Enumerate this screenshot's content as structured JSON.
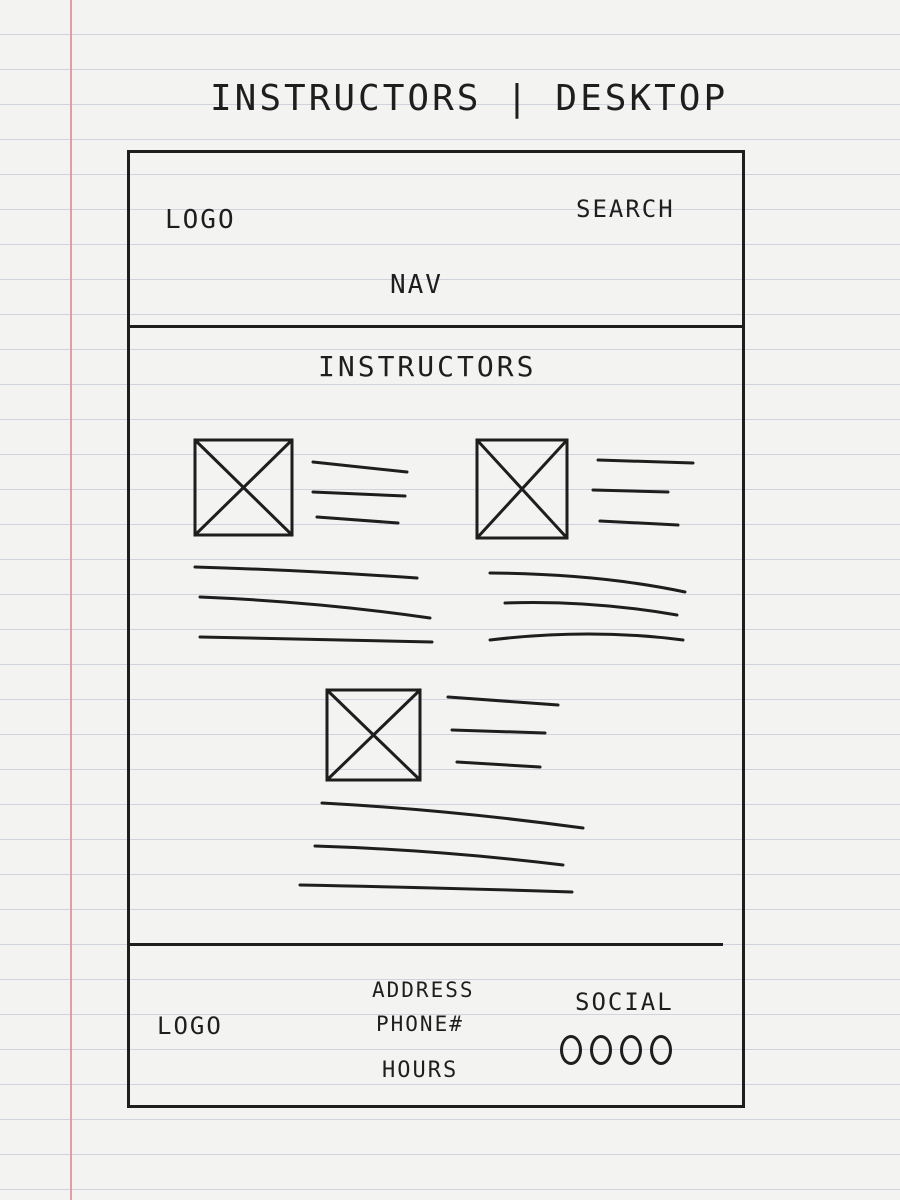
{
  "page_title": "INSTRUCTORS | DESKTOP",
  "header": {
    "logo": "LOGO",
    "search": "SEARCH",
    "nav": "NAV"
  },
  "main": {
    "title": "INSTRUCTORS"
  },
  "footer": {
    "logo": "LOGO",
    "address": "ADDRESS",
    "phone": "PHONE#",
    "hours": "HOURS",
    "social_label": "SOCIAL",
    "social_icon_count": 4
  }
}
